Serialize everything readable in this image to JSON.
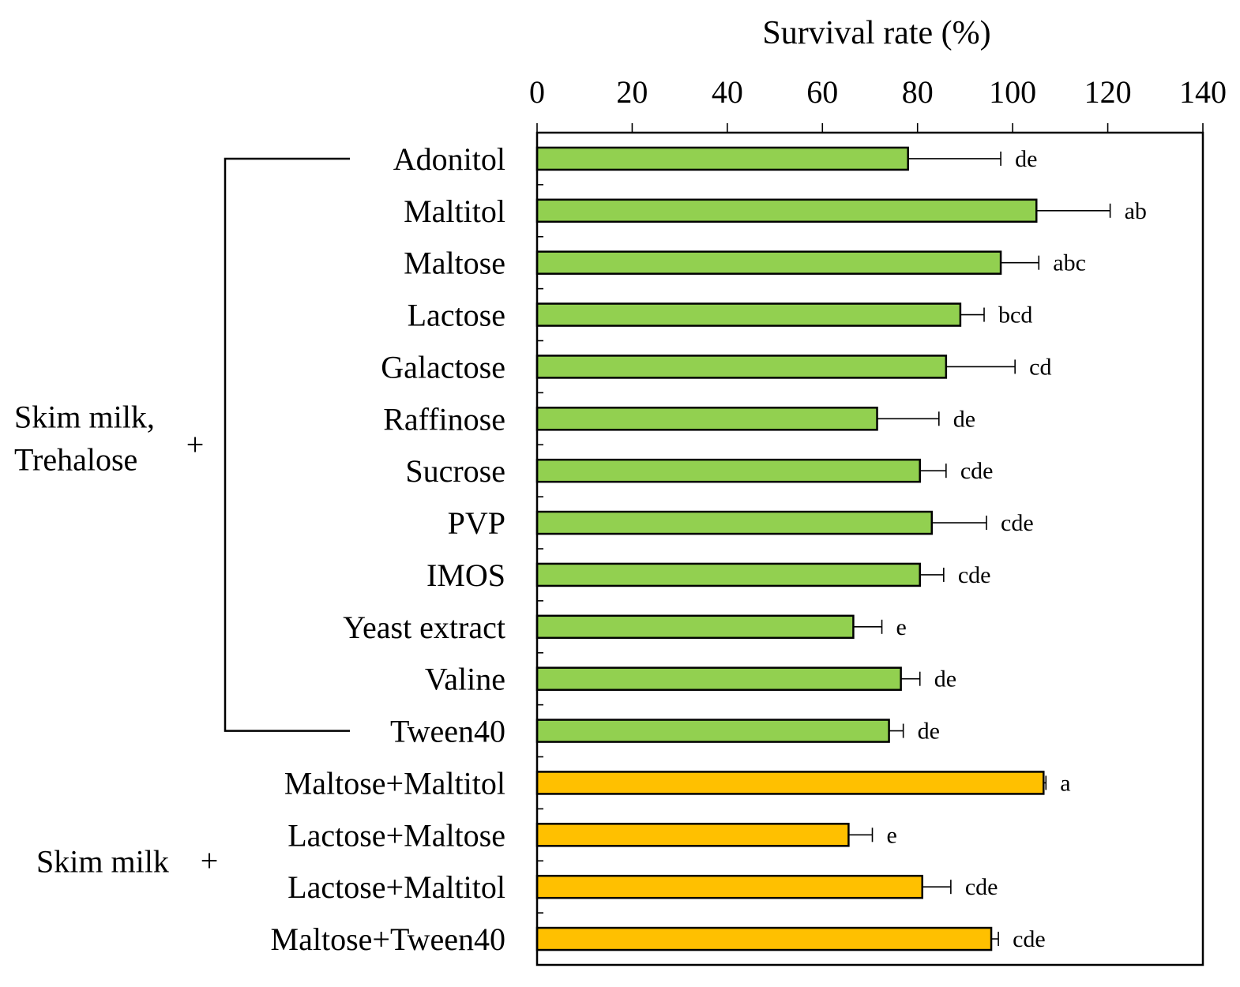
{
  "chart_data": {
    "type": "bar",
    "orientation": "horizontal",
    "title": "",
    "xlabel": "Survival rate (%)",
    "ylabel": "",
    "xlim": [
      0,
      140
    ],
    "xticks": [
      0,
      20,
      40,
      60,
      80,
      100,
      120,
      140
    ],
    "x_axis_position": "top",
    "grid": false,
    "categories": [
      "Adonitol",
      "Maltitol",
      "Maltose",
      "Lactose",
      "Galactose",
      "Raffinose",
      "Sucrose",
      "PVP",
      "IMOS",
      "Yeast extract",
      "Valine",
      "Tween40",
      "Maltose+Maltitol",
      "Lactose+Maltose",
      "Lactose+Maltitol",
      "Maltose+Tween40"
    ],
    "values": [
      78,
      105,
      97.5,
      89,
      86,
      71.5,
      80.5,
      83,
      80.5,
      66.5,
      76.5,
      74,
      106.5,
      65.5,
      81,
      95.5
    ],
    "errors": [
      19.5,
      15.5,
      8,
      5,
      14.5,
      13,
      5.5,
      11.5,
      5,
      6,
      4,
      3,
      0.5,
      5,
      6,
      1.5
    ],
    "significance": [
      "de",
      "ab",
      "abc",
      "bcd",
      "cd",
      "de",
      "cde",
      "cde",
      "cde",
      "e",
      "de",
      "de",
      "a",
      "e",
      "cde",
      "cde"
    ],
    "bar_colors": [
      "#92D050",
      "#92D050",
      "#92D050",
      "#92D050",
      "#92D050",
      "#92D050",
      "#92D050",
      "#92D050",
      "#92D050",
      "#92D050",
      "#92D050",
      "#92D050",
      "#FFC000",
      "#FFC000",
      "#FFC000",
      "#FFC000"
    ],
    "groups": [
      {
        "label_lines": [
          "Skim milk,",
          "Trehalose"
        ],
        "plus": "+",
        "first": 0,
        "last": 11
      },
      {
        "label_lines": [
          "Skim milk"
        ],
        "plus": "+",
        "first": 12,
        "last": 15
      }
    ]
  }
}
